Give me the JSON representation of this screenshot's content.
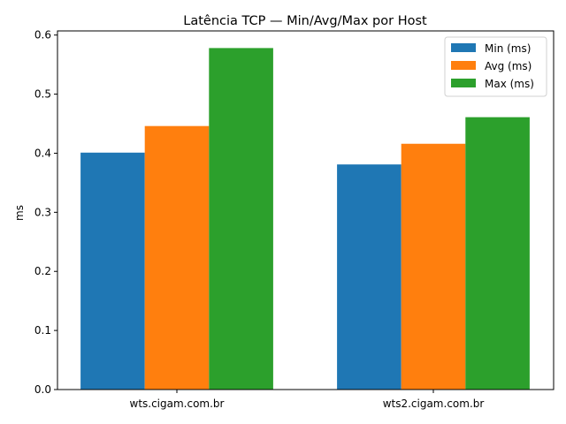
{
  "chart_data": {
    "type": "bar",
    "title": "Latência TCP — Min/Avg/Max por Host",
    "xlabel": "",
    "ylabel": "ms",
    "categories": [
      "wts.cigam.com.br",
      "wts2.cigam.com.br"
    ],
    "series": [
      {
        "name": "Min (ms)",
        "color": "#1f77b4",
        "values": [
          0.401,
          0.381
        ]
      },
      {
        "name": "Avg (ms)",
        "color": "#ff7f0e",
        "values": [
          0.446,
          0.416
        ]
      },
      {
        "name": "Max (ms)",
        "color": "#2ca02c",
        "values": [
          0.578,
          0.461
        ]
      }
    ],
    "ylim": [
      0,
      0.607
    ],
    "yticks": [
      "0.0",
      "0.1",
      "0.2",
      "0.3",
      "0.4",
      "0.5",
      "0.6"
    ],
    "grid": false,
    "legend_position": "top-right"
  }
}
